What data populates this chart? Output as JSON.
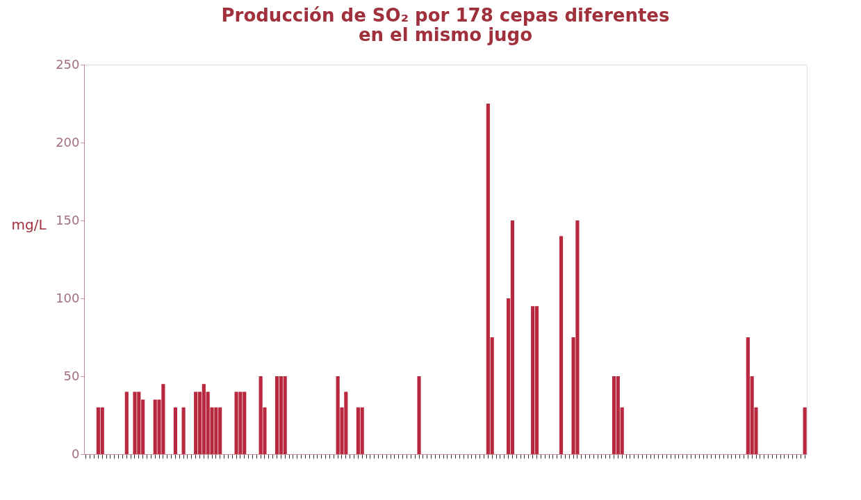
{
  "chart_data": {
    "type": "bar",
    "title": "Producción de SO₂ por 178 cepas diferentes\nen el mismo jugo",
    "ylabel": "mg/L",
    "categories": [
      null,
      null,
      null,
      null,
      null,
      null,
      null,
      null,
      null,
      null,
      null,
      null,
      null,
      null,
      null,
      null,
      null,
      null,
      null,
      null,
      null,
      null,
      null,
      null,
      null,
      null,
      null,
      null,
      null,
      null,
      null,
      null,
      null,
      null,
      null,
      null,
      null,
      null,
      null,
      null,
      null,
      null,
      null,
      null,
      null,
      null,
      null,
      null,
      null,
      null,
      null,
      null,
      null,
      null,
      null,
      null,
      null,
      null,
      null,
      null,
      null,
      null,
      null,
      null,
      null,
      null,
      null,
      null,
      null,
      null,
      null,
      null,
      null,
      null,
      null,
      null,
      null,
      null,
      null,
      null,
      null,
      null,
      null,
      null,
      null,
      null,
      null,
      null,
      null,
      null,
      null,
      null,
      null,
      null,
      null,
      null,
      null,
      null,
      null,
      null,
      null,
      null,
      null,
      null,
      null,
      null,
      null,
      null,
      null,
      null,
      null,
      null,
      null,
      null,
      null,
      null,
      null,
      null,
      null,
      null,
      null,
      null,
      null,
      null,
      null,
      null,
      null,
      null,
      null,
      null,
      null,
      null,
      null,
      null,
      null,
      null,
      null,
      null,
      null,
      null,
      null,
      null,
      null,
      null,
      null,
      null,
      null,
      null,
      null,
      null,
      null,
      null,
      null,
      null,
      null,
      null,
      null,
      null,
      null,
      null,
      null,
      null,
      null,
      null,
      null,
      null,
      null,
      null,
      null,
      null,
      null,
      null,
      null,
      null,
      null,
      null,
      null,
      null
    ],
    "values": [
      0,
      0,
      0,
      30,
      30,
      0,
      0,
      0,
      0,
      0,
      40,
      0,
      40,
      40,
      35,
      0,
      0,
      35,
      35,
      45,
      0,
      0,
      30,
      0,
      30,
      0,
      0,
      40,
      40,
      45,
      40,
      30,
      30,
      30,
      0,
      0,
      0,
      40,
      40,
      40,
      0,
      0,
      0,
      50,
      30,
      0,
      0,
      50,
      50,
      50,
      0,
      0,
      0,
      0,
      0,
      0,
      0,
      0,
      0,
      0,
      0,
      0,
      50,
      30,
      40,
      0,
      0,
      30,
      30,
      0,
      0,
      0,
      0,
      0,
      0,
      0,
      0,
      0,
      0,
      0,
      0,
      0,
      50,
      0,
      0,
      0,
      0,
      0,
      0,
      0,
      0,
      0,
      0,
      0,
      0,
      0,
      0,
      0,
      0,
      225,
      75,
      0,
      0,
      0,
      100,
      150,
      0,
      0,
      0,
      0,
      95,
      95,
      0,
      0,
      0,
      0,
      0,
      140,
      0,
      0,
      75,
      150,
      0,
      0,
      0,
      0,
      0,
      0,
      0,
      0,
      50,
      50,
      30,
      0,
      0,
      0,
      0,
      0,
      0,
      0,
      0,
      0,
      0,
      0,
      0,
      0,
      0,
      0,
      0,
      0,
      0,
      0,
      0,
      0,
      0,
      0,
      0,
      0,
      0,
      0,
      0,
      0,
      0,
      75,
      50,
      30,
      0,
      0,
      0,
      0,
      0,
      0,
      0,
      0,
      0,
      0,
      0,
      30
    ],
    "color": "#b8283f",
    "ylim": [
      0,
      250
    ],
    "yticks": [
      0,
      50,
      100,
      150,
      200,
      250
    ],
    "grid": false,
    "tick_labels": "y"
  }
}
